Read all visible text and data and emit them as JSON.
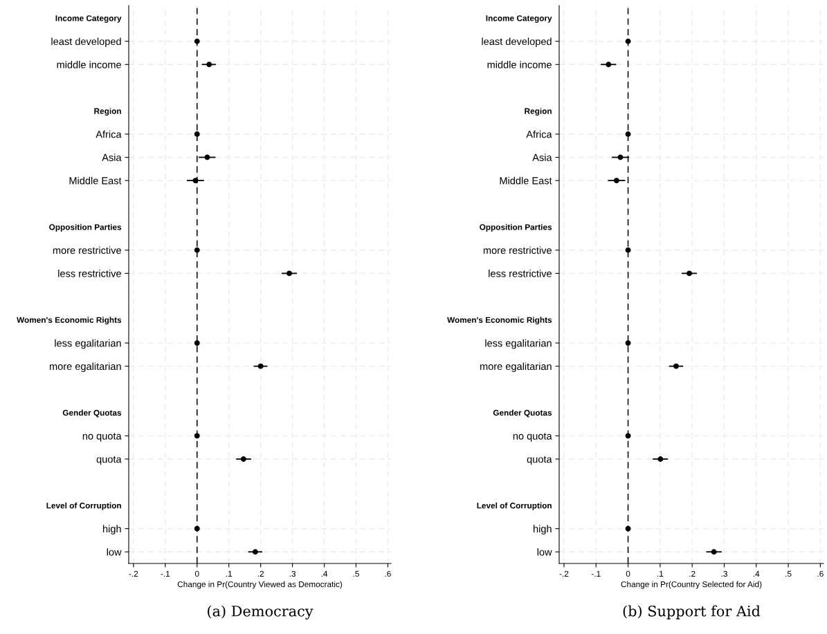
{
  "chart_data": [
    {
      "type": "scatter",
      "orientation": "horizontal",
      "title": "(a) Democracy",
      "xlabel": "Change in Pr(Country Viewed as Democratic)",
      "categories": [
        "Income Category",
        "least developed",
        "middle income",
        null,
        "Region",
        "Africa",
        "Asia",
        "Middle East",
        null,
        "Opposition Parties",
        "more restrictive",
        "less restrictive",
        null,
        "Women's Economic Rights",
        "less egalitarian",
        "more egalitarian",
        null,
        "Gender Quotas",
        "no quota",
        "quota",
        null,
        "Level of Corruption",
        "high",
        "low"
      ],
      "series": [
        {
          "color": "#000000",
          "values": [
            null,
            0,
            0.038,
            null,
            null,
            0,
            0.032,
            -0.005,
            null,
            null,
            0,
            0.29,
            null,
            null,
            0,
            0.2,
            null,
            null,
            0,
            0.146,
            null,
            null,
            0,
            0.183
          ],
          "errors": [
            null,
            null,
            [
              0.015,
              0.059
            ],
            null,
            null,
            null,
            [
              0.005,
              0.058
            ],
            [
              -0.032,
              0.022
            ],
            null,
            null,
            null,
            [
              0.266,
              0.314
            ],
            null,
            null,
            null,
            [
              0.178,
              0.221
            ],
            null,
            null,
            null,
            [
              0.123,
              0.17
            ],
            null,
            null,
            null,
            [
              0.161,
              0.205
            ]
          ]
        }
      ],
      "xlim": [
        -0.215,
        0.61
      ],
      "xticks": [
        {
          "value": -0.2,
          "label": "-.2"
        },
        {
          "value": -0.1,
          "label": "-.1"
        },
        0,
        {
          "value": 0.1,
          "label": ".1"
        },
        {
          "value": 0.2,
          "label": ".2"
        },
        {
          "value": 0.3,
          "label": ".3"
        },
        {
          "value": 0.4,
          "label": ".4"
        },
        {
          "value": 0.5,
          "label": ".5"
        },
        {
          "value": 0.6,
          "label": ".6"
        }
      ],
      "ref_lines": [
        {
          "axis": "x",
          "value": 0,
          "color": "#000000",
          "line_style": "dashed"
        }
      ],
      "grid": true,
      "marker": "circle"
    },
    {
      "type": "scatter",
      "orientation": "horizontal",
      "title": "(b) Support for Aid",
      "xlabel": "Change in Pr(Country Selected for Aid)",
      "categories": [
        "Income Category",
        "least developed",
        "middle income",
        null,
        "Region",
        "Africa",
        "Asia",
        "Middle East",
        null,
        "Opposition Parties",
        "more restrictive",
        "less restrictive",
        null,
        "Women's Economic Rights",
        "less egalitarian",
        "more egalitarian",
        null,
        "Gender Quotas",
        "no quota",
        "quota",
        null,
        "Level of Corruption",
        "high",
        "low"
      ],
      "series": [
        {
          "color": "#000000",
          "values": [
            null,
            0,
            -0.061,
            null,
            null,
            0,
            -0.024,
            -0.036,
            null,
            null,
            0,
            0.191,
            null,
            null,
            0,
            0.15,
            null,
            null,
            0,
            0.101,
            null,
            null,
            0,
            0.268
          ],
          "errors": [
            null,
            null,
            [
              -0.085,
              -0.037
            ],
            null,
            null,
            null,
            [
              -0.051,
              0.003
            ],
            [
              -0.063,
              -0.009
            ],
            null,
            null,
            null,
            [
              0.167,
              0.215
            ],
            null,
            null,
            null,
            [
              0.128,
              0.172
            ],
            null,
            null,
            null,
            [
              0.077,
              0.124
            ],
            null,
            null,
            null,
            [
              0.244,
              0.292
            ]
          ]
        }
      ],
      "xlim": [
        -0.215,
        0.61
      ],
      "xticks": [
        {
          "value": -0.2,
          "label": "-.2"
        },
        {
          "value": -0.1,
          "label": "-.1"
        },
        0,
        {
          "value": 0.1,
          "label": ".1"
        },
        {
          "value": 0.2,
          "label": ".2"
        },
        {
          "value": 0.3,
          "label": ".3"
        },
        {
          "value": 0.4,
          "label": ".4"
        },
        {
          "value": 0.5,
          "label": ".5"
        },
        {
          "value": 0.6,
          "label": ".6"
        }
      ],
      "ref_lines": [
        {
          "axis": "x",
          "value": 0,
          "color": "#000000",
          "line_style": "dashed"
        }
      ],
      "grid": true,
      "marker": "circle"
    }
  ]
}
